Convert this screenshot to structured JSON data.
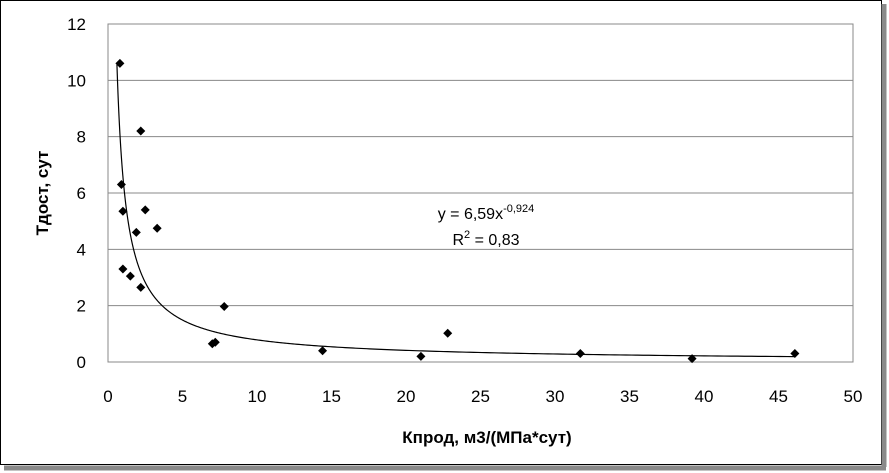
{
  "chart_data": {
    "type": "scatter",
    "title": "",
    "xlabel": "Кпрод, м3/(МПа*сут)",
    "ylabel": "Тдост, сут",
    "xlim": [
      0,
      50
    ],
    "ylim": [
      0,
      12
    ],
    "x_ticks": [
      0,
      5,
      10,
      15,
      20,
      25,
      30,
      35,
      40,
      45,
      50
    ],
    "y_ticks": [
      0,
      2,
      4,
      6,
      8,
      10,
      12
    ],
    "grid": "horizontal",
    "legend": "none",
    "marker": "diamond",
    "marker_color": "#000000",
    "series": [
      {
        "points": [
          {
            "x": 0.8,
            "y": 10.6
          },
          {
            "x": 0.9,
            "y": 6.3
          },
          {
            "x": 1.0,
            "y": 5.35
          },
          {
            "x": 1.0,
            "y": 3.3
          },
          {
            "x": 1.5,
            "y": 3.05
          },
          {
            "x": 1.9,
            "y": 4.6
          },
          {
            "x": 2.2,
            "y": 8.2
          },
          {
            "x": 2.2,
            "y": 2.65
          },
          {
            "x": 2.5,
            "y": 5.4
          },
          {
            "x": 3.3,
            "y": 4.75
          },
          {
            "x": 7.0,
            "y": 0.65
          },
          {
            "x": 7.2,
            "y": 0.7
          },
          {
            "x": 7.8,
            "y": 1.97
          },
          {
            "x": 14.4,
            "y": 0.4
          },
          {
            "x": 21.0,
            "y": 0.2
          },
          {
            "x": 22.8,
            "y": 1.02
          },
          {
            "x": 31.7,
            "y": 0.3
          },
          {
            "x": 39.2,
            "y": 0.12
          },
          {
            "x": 46.1,
            "y": 0.3
          }
        ]
      }
    ],
    "trendline": {
      "type": "power",
      "a": 6.59,
      "b": -0.924,
      "x_range": [
        0.6,
        46.1
      ],
      "equation_main": "y = 6,59x",
      "equation_exp": "-0,924",
      "r2_main": "R",
      "r2_exp": "2",
      "r2_rest": " = 0,83"
    }
  }
}
